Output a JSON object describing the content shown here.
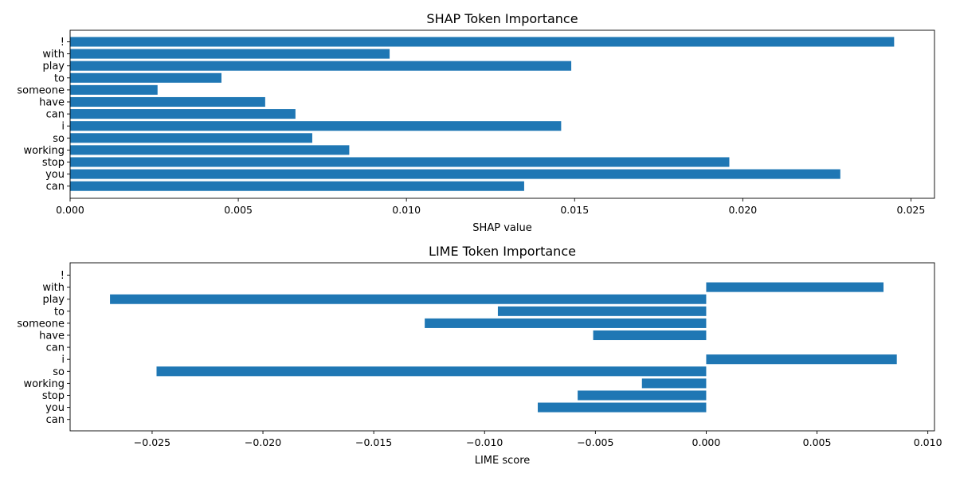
{
  "chart_data": [
    {
      "type": "bar",
      "orientation": "horizontal",
      "title": "SHAP Token Importance",
      "xlabel": "SHAP value",
      "ylabel": "",
      "categories": [
        "can",
        "you",
        "stop",
        "working",
        "so",
        "i",
        "can",
        "have",
        "someone",
        "to",
        "play",
        "with",
        "!"
      ],
      "values": [
        0.0135,
        0.0229,
        0.0196,
        0.0083,
        0.0072,
        0.0146,
        0.0067,
        0.0058,
        0.0026,
        0.0045,
        0.0149,
        0.0095,
        0.0245
      ],
      "xlim": [
        0,
        0.0257
      ],
      "xticks": [
        0,
        0.005,
        0.01,
        0.015,
        0.02,
        0.025
      ],
      "xtick_labels": [
        "0.000",
        "0.005",
        "0.010",
        "0.015",
        "0.020",
        "0.025"
      ],
      "grid": false,
      "color": "#1f77b4"
    },
    {
      "type": "bar",
      "orientation": "horizontal",
      "title": "LIME Token Importance",
      "xlabel": "LIME score",
      "ylabel": "",
      "categories": [
        "can",
        "you",
        "stop",
        "working",
        "so",
        "i",
        "can",
        "have",
        "someone",
        "to",
        "play",
        "with",
        "!"
      ],
      "values": [
        0,
        -0.0076,
        -0.0058,
        -0.0029,
        -0.0248,
        0.0086,
        0,
        -0.0051,
        -0.0127,
        -0.0094,
        -0.0269,
        0.008,
        0
      ],
      "xlim": [
        -0.0287,
        0.0103
      ],
      "xticks": [
        -0.025,
        -0.02,
        -0.015,
        -0.01,
        -0.005,
        0,
        0.005,
        0.01
      ],
      "xtick_labels": [
        "−0.025",
        "−0.020",
        "−0.015",
        "−0.010",
        "−0.005",
        "0.000",
        "0.005",
        "0.010"
      ],
      "grid": false,
      "color": "#1f77b4"
    }
  ]
}
